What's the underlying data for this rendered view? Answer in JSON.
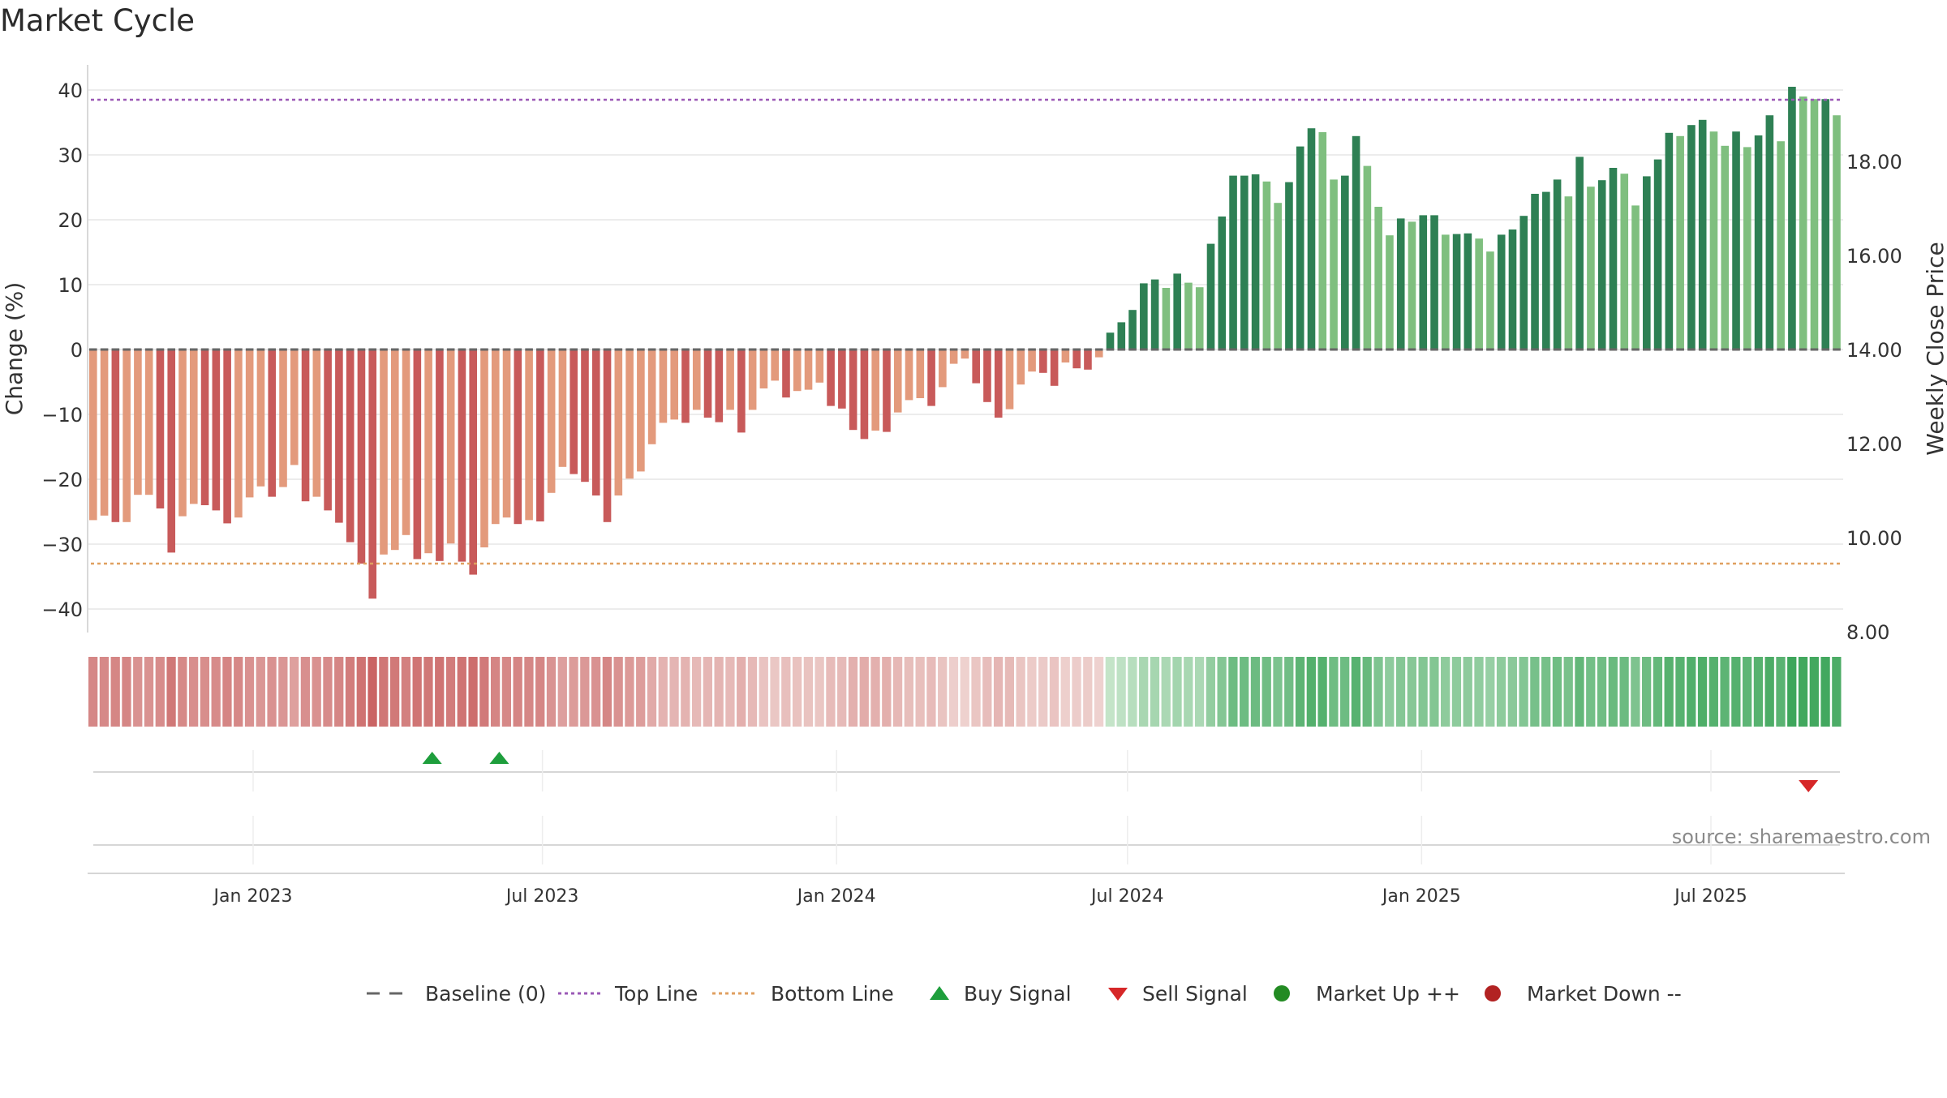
{
  "chart_data": {
    "type": "bar",
    "title": "Market Cycle",
    "ylabel_left": "Change (%)",
    "ylabel_right": "Weekly Close Price",
    "y_left_ticks": [
      "40",
      "30",
      "20",
      "10",
      "0",
      "−10",
      "−20",
      "−30",
      "−40"
    ],
    "y_left_tick_values": [
      40,
      30,
      20,
      10,
      0,
      -10,
      -20,
      -30,
      -40
    ],
    "ylim_left": [
      -44,
      44
    ],
    "y_right_ticks": [
      "18.00",
      "16.00",
      "14.00",
      "12.00",
      "10.00",
      "8.00"
    ],
    "y_right_tick_values": [
      18,
      16,
      14,
      12,
      10,
      8
    ],
    "ylim_right": [
      8,
      19.5
    ],
    "x_tick_labels": [
      "Jan 2023",
      "Jul 2023",
      "Jan 2024",
      "Jul 2024",
      "Jan 2025",
      "Jul 2025"
    ],
    "x_tick_dates": [
      "2023-01-01",
      "2023-07-01",
      "2024-01-01",
      "2024-07-01",
      "2025-01-01",
      "2025-07-01"
    ],
    "first_week": "2022-10-16",
    "top_line": 38.5,
    "bottom_line": -33,
    "baseline": 0,
    "values": [
      -26.3,
      -25.6,
      -26.6,
      -26.6,
      -22.4,
      -22.4,
      -24.5,
      -31.3,
      -25.7,
      -23.8,
      -24.0,
      -24.8,
      -26.8,
      -25.9,
      -22.8,
      -21.1,
      -22.7,
      -21.2,
      -17.8,
      -23.4,
      -22.7,
      -24.8,
      -26.7,
      -29.7,
      -33.0,
      -38.4,
      -31.6,
      -30.9,
      -28.6,
      -32.3,
      -31.4,
      -32.6,
      -29.9,
      -32.7,
      -34.7,
      -30.5,
      -26.9,
      -25.9,
      -26.9,
      -26.3,
      -26.5,
      -22.1,
      -18.1,
      -19.2,
      -20.4,
      -22.5,
      -26.6,
      -22.5,
      -19.9,
      -18.8,
      -14.6,
      -11.3,
      -10.8,
      -11.3,
      -9.3,
      -10.5,
      -11.2,
      -9.3,
      -12.8,
      -9.3,
      -6.0,
      -4.8,
      -7.4,
      -6.4,
      -6.2,
      -5.1,
      -8.7,
      -9.1,
      -12.4,
      -13.8,
      -12.5,
      -12.7,
      -9.7,
      -7.8,
      -7.5,
      -8.7,
      -5.8,
      -2.2,
      -1.4,
      -5.2,
      -8.1,
      -10.5,
      -9.2,
      -5.4,
      -3.4,
      -3.6,
      -5.6,
      -2.0,
      -2.9,
      -3.1,
      -1.2,
      2.6,
      4.2,
      6.1,
      10.2,
      10.8,
      9.5,
      11.7,
      10.3,
      9.6,
      16.3,
      20.5,
      26.8,
      26.8,
      27.0,
      25.9,
      22.6,
      25.8,
      31.3,
      34.1,
      33.5,
      26.2,
      26.8,
      32.9,
      28.3,
      22.0,
      17.6,
      20.2,
      19.7,
      20.7,
      20.7,
      17.7,
      17.8,
      17.9,
      17.1,
      15.1,
      17.7,
      18.5,
      20.6,
      24.0,
      24.3,
      26.2,
      23.6,
      29.7,
      25.1,
      26.1,
      28.0,
      27.1,
      22.2,
      26.7,
      29.3,
      33.4,
      32.9,
      34.6,
      35.4,
      33.6,
      31.4,
      33.6,
      31.2,
      33.0,
      36.1,
      32.1,
      40.5,
      39.0,
      38.6,
      38.6,
      36.1
    ],
    "signals": [
      {
        "type": "buy",
        "date": "2023-04-23"
      },
      {
        "type": "buy",
        "date": "2023-06-04"
      },
      {
        "type": "sell",
        "date": "2025-08-31"
      }
    ],
    "colors": {
      "down_dark": "#c85a5a",
      "down_light": "#e39a7c",
      "up_dark": "#2e8054",
      "up_light": "#7fbf7f",
      "top_line": "#9b59b6",
      "bottom_line": "#e0a060",
      "baseline": "#666666",
      "buy": "#1e9e3c",
      "sell": "#d62728",
      "market_up": "#238b23",
      "market_down": "#b22222"
    },
    "legend": [
      {
        "label": "Baseline (0)",
        "symbol": "dash"
      },
      {
        "label": "Top Line",
        "symbol": "dot-line-purple"
      },
      {
        "label": "Bottom Line",
        "symbol": "dot-line-orange"
      },
      {
        "label": "Buy Signal",
        "symbol": "triangle-up"
      },
      {
        "label": "Sell Signal",
        "symbol": "triangle-down"
      },
      {
        "label": "Market Up ++",
        "symbol": "circle-green"
      },
      {
        "label": "Market Down --",
        "symbol": "circle-red"
      }
    ],
    "legend_position": "bottom-center",
    "grid": true,
    "source": "source: sharemaestro.com"
  }
}
